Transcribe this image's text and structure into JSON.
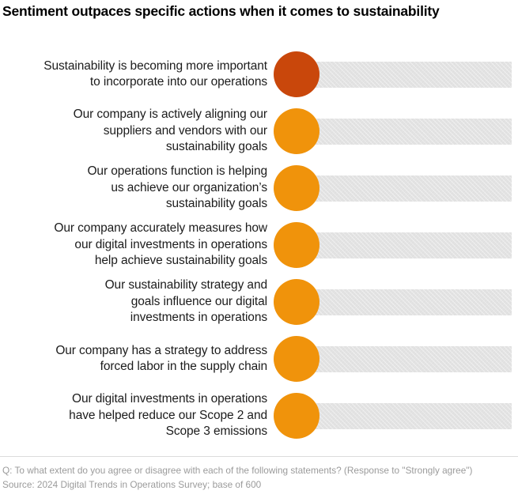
{
  "title": "Sentiment outpaces specific actions when it comes to sustainability",
  "colors": {
    "highlight_bubble": "#c9470b",
    "bubble": "#f0930b",
    "track": "#e3e3e3",
    "label_text": "#1c1c1c",
    "footnote_text": "#9b9b9b",
    "background": "#ffffff"
  },
  "rows": [
    {
      "highlighted": true,
      "label": "Sustainability is becoming more important to incorporate into our operations",
      "lines": [
        "Sustainability is becoming more important",
        "to incorporate into our operations"
      ]
    },
    {
      "highlighted": false,
      "label": "Our company is actively aligning our suppliers and vendors with our sustainability goals",
      "lines": [
        "Our company is actively aligning our",
        "suppliers and vendors with our",
        "sustainability goals"
      ]
    },
    {
      "highlighted": false,
      "label": "Our operations function is helping us achieve our organization’s sustainability goals",
      "lines": [
        "Our operations function is helping",
        "us achieve our organization’s",
        "sustainability goals"
      ]
    },
    {
      "highlighted": false,
      "label": "Our company accurately measures how our digital investments in operations help achieve sustainability goals",
      "lines": [
        "Our company accurately measures how",
        "our digital investments in operations",
        "help achieve sustainability goals"
      ]
    },
    {
      "highlighted": false,
      "label": "Our sustainability strategy and goals influence our digital investments in operations",
      "lines": [
        "Our sustainability strategy and",
        "goals influence our digital",
        "investments in operations"
      ]
    },
    {
      "highlighted": false,
      "label": "Our company has a strategy to address forced labor in the supply chain",
      "lines": [
        "Our company has a strategy to address",
        "forced labor in the supply chain"
      ]
    },
    {
      "highlighted": false,
      "label": "Our digital investments in operations have helped reduce our Scope 2 and Scope 3 emissions",
      "lines": [
        "Our digital investments in operations",
        "have helped reduce our Scope 2 and",
        "Scope 3 emissions"
      ]
    }
  ],
  "footnotes": {
    "question": "Q: To what extent do you agree or disagree with each of the following statements? (Response to \"Strongly agree\")",
    "source": "Source: 2024 Digital Trends in Operations Survey; base of 600"
  },
  "chart_data": {
    "type": "bar",
    "orientation": "horizontal",
    "marker": "circle",
    "title": "Sentiment outpaces specific actions when it comes to sustainability",
    "categories": [
      "Sustainability is becoming more important to incorporate into our operations",
      "Our company is actively aligning our suppliers and vendors with our sustainability goals",
      "Our operations function is helping us achieve our organization’s sustainability goals",
      "Our company accurately measures how our digital investments in operations help achieve sustainability goals",
      "Our sustainability strategy and goals influence our digital investments in operations",
      "Our company has a strategy to address forced labor in the supply chain",
      "Our digital investments in operations have helped reduce our Scope 2 and Scope 3 emissions"
    ],
    "value_labels_visible": false,
    "highlighted_index": 0,
    "legend": "none",
    "grid": "off",
    "notes": "Each statement row shows an orange circular marker at the left end of a full-width light-gray track; no numeric values are rendered in the image. The first statement (sentiment) uses a darker red-orange marker, the remaining six (actions) use the standard orange."
  }
}
